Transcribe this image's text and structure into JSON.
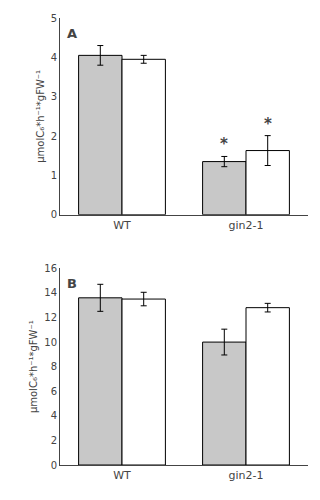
{
  "chart_data": [
    {
      "type": "bar",
      "title": "A",
      "categories": [
        "WT",
        "gin2-1"
      ],
      "series": [
        {
          "color": "#c8c8c8",
          "values": [
            4.05,
            1.35
          ],
          "errors": [
            0.25,
            0.13
          ]
        },
        {
          "color": "#ffffff",
          "values": [
            3.95,
            1.63
          ],
          "errors": [
            0.1,
            0.38
          ]
        }
      ],
      "annotations": [
        {
          "text": "*",
          "category": "gin2-1",
          "series": 0
        },
        {
          "text": "*",
          "category": "gin2-1",
          "series": 1
        }
      ],
      "ylabel": "μmolC₆*h⁻¹*gFW⁻¹",
      "ylim": [
        0,
        5
      ],
      "yticks": [
        0,
        1,
        2,
        3,
        4,
        5
      ],
      "grid": false
    },
    {
      "type": "bar",
      "title": "B",
      "categories": [
        "WT",
        "gin2-1"
      ],
      "series": [
        {
          "color": "#c8c8c8",
          "values": [
            13.6,
            10.0
          ],
          "errors": [
            1.1,
            1.05
          ]
        },
        {
          "color": "#ffffff",
          "values": [
            13.5,
            12.8
          ],
          "errors": [
            0.55,
            0.35
          ]
        }
      ],
      "ylabel": "μmolC₆*h⁻¹*gFW⁻¹",
      "ylim": [
        0,
        16
      ],
      "yticks": [
        0,
        2,
        4,
        6,
        8,
        10,
        12,
        14,
        16
      ],
      "grid": false
    }
  ]
}
